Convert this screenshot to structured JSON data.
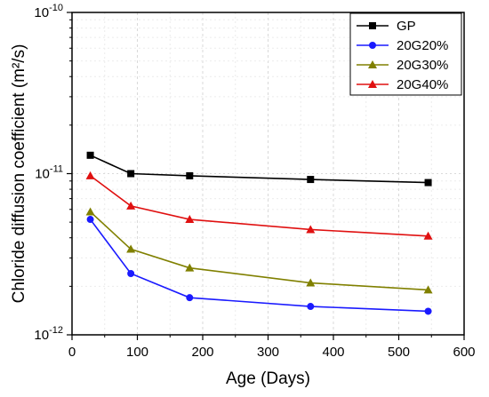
{
  "chart_data": {
    "type": "line",
    "xlabel": "Age (Days)",
    "ylabel": "Chloride diffusion coefficient (m²/s)",
    "xlim": [
      0,
      600
    ],
    "ylim": [
      1e-12,
      1e-10
    ],
    "y_scale": "log",
    "x_ticks": [
      "0",
      "100",
      "200",
      "300",
      "400",
      "500",
      "600"
    ],
    "y_ticks": [
      {
        "base": "10",
        "exp": "-12",
        "value": 1e-12
      },
      {
        "base": "10",
        "exp": "-11",
        "value": 1e-11
      },
      {
        "base": "10",
        "exp": "-10",
        "value": 1e-10
      }
    ],
    "grid": true,
    "legend_position": "top-right",
    "series": [
      {
        "name": "GP",
        "color": "#000000",
        "marker": "square",
        "x": [
          28,
          90,
          180,
          365,
          545
        ],
        "y": [
          1.3e-11,
          1e-11,
          9.7e-12,
          9.2e-12,
          8.8e-12
        ]
      },
      {
        "name": "20G20%",
        "color": "#1a1aff",
        "marker": "circle",
        "x": [
          28,
          90,
          180,
          365,
          545
        ],
        "y": [
          5.2e-12,
          2.4e-12,
          1.7e-12,
          1.5e-12,
          1.4e-12
        ]
      },
      {
        "name": "20G30%",
        "color": "#808000",
        "marker": "triangle",
        "x": [
          28,
          90,
          180,
          365,
          545
        ],
        "y": [
          5.8e-12,
          3.4e-12,
          2.6e-12,
          2.1e-12,
          1.9e-12
        ]
      },
      {
        "name": "20G40%",
        "color": "#e01010",
        "marker": "triangle",
        "x": [
          28,
          90,
          180,
          365,
          545
        ],
        "y": [
          9.7e-12,
          6.3e-12,
          5.2e-12,
          4.5e-12,
          4.1e-12
        ]
      }
    ]
  }
}
